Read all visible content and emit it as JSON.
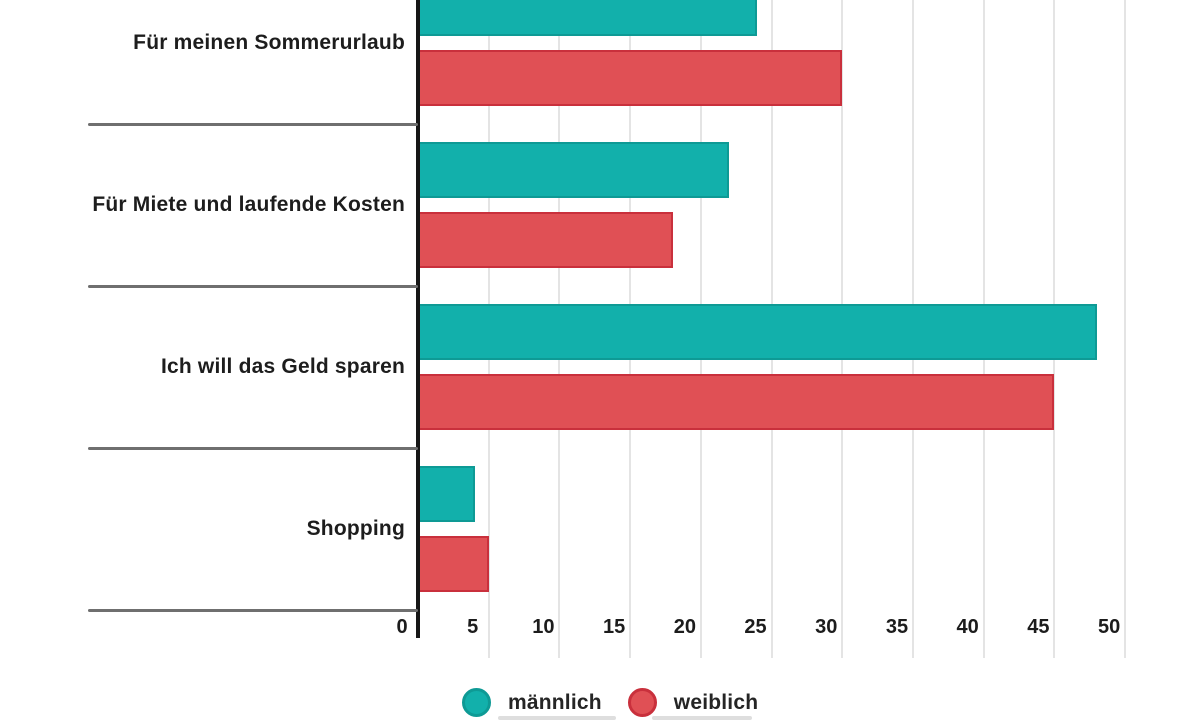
{
  "chart_data": {
    "type": "bar",
    "orientation": "horizontal",
    "title": "",
    "xlabel": "",
    "ylabel": "",
    "categories": [
      "Für meinen Sommerurlaub",
      "Für Miete und laufende Kosten",
      "Ich will das Geld sparen",
      "Shopping"
    ],
    "series": [
      {
        "name": "männlich",
        "slug": "maennlich",
        "color": "#12b0ab",
        "border_color": "#0e9a95",
        "values": [
          24,
          22,
          48,
          4
        ]
      },
      {
        "name": "weiblich",
        "slug": "weiblich",
        "color": "#e05055",
        "border_color": "#c9303c",
        "values": [
          30,
          18,
          45,
          5
        ]
      }
    ],
    "x_ticks": [
      0,
      5,
      10,
      15,
      20,
      25,
      30,
      35,
      40,
      45,
      50
    ],
    "xlim": [
      0,
      50
    ],
    "grid": true,
    "grid_color": "#e4e4e4",
    "axis_color": "#161616",
    "separator_color": "#6f6f6f",
    "text_color": "#1d1d1d",
    "legend_position": "bottom",
    "note": "top bar of first group partially cropped at image top"
  },
  "legend": {
    "items": [
      {
        "label": "männlich"
      },
      {
        "label": "weiblich"
      }
    ]
  }
}
